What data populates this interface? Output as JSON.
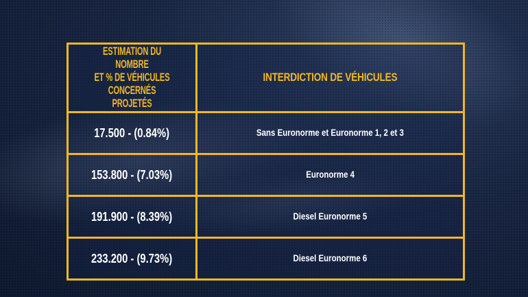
{
  "table": {
    "headers": {
      "col1": "ESTIMATION DU NOMBRE ET % DE VÉHICULES CONCERNÉS PROJETÉS",
      "col1_lines": [
        "ESTIMATION DU NOMBRE",
        "ET % DE VÉHICULES",
        "CONCERNÉS PROJETÉS"
      ],
      "col2": "INTERDICTION DE VÉHICULES"
    },
    "rows": [
      {
        "estimate": "17.500 - (0.84%)",
        "ban": "Sans Euronorme et Euronorme 1, 2 et 3"
      },
      {
        "estimate": "153.800 - (7.03%)",
        "ban": "Euronorme 4"
      },
      {
        "estimate": "191.900 - (8.39%)",
        "ban": "Diesel Euronorme 5"
      },
      {
        "estimate": "233.200 - (9.73%)",
        "ban": "Diesel Euronorme 6"
      }
    ]
  },
  "colors": {
    "border": "#f2b824",
    "header_text": "#f2b824",
    "body_text": "#ffffff",
    "background": "#1a2845"
  }
}
